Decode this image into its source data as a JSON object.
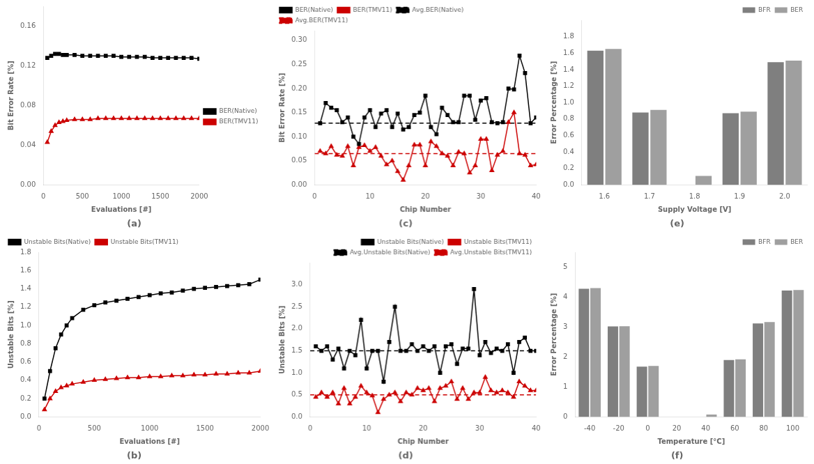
{
  "chart_data": [
    {
      "type": "line",
      "title": "(a)",
      "xlabel": "Evaluations [#]",
      "ylabel": "Bit Error Rate [%]",
      "xlim": [
        0,
        2000
      ],
      "ylim": [
        0,
        0.18
      ],
      "xticks": [
        0,
        500,
        1000,
        1500,
        2000
      ],
      "yticks": [
        {
          "value": 0,
          "label": "0.00"
        },
        0.04,
        0.08,
        0.12,
        0.16
      ],
      "grid": false,
      "legend": "center right",
      "x": [
        50,
        100,
        150,
        200,
        250,
        300,
        400,
        500,
        600,
        700,
        800,
        900,
        1000,
        1100,
        1200,
        1300,
        1400,
        1500,
        1600,
        1700,
        1800,
        1900,
        2000
      ],
      "series": [
        {
          "name": "BER(Native)",
          "color": "#000000",
          "marker": "square",
          "line_style": "solid",
          "values": [
            0.128,
            0.13,
            0.132,
            0.132,
            0.131,
            0.131,
            0.131,
            0.13,
            0.13,
            0.13,
            0.13,
            0.13,
            0.129,
            0.129,
            0.129,
            0.129,
            0.128,
            0.128,
            0.128,
            0.128,
            0.128,
            0.128,
            0.127
          ]
        },
        {
          "name": "BER(TMV11)",
          "color": "#cc0000",
          "marker": "triangle",
          "line_style": "solid",
          "values": [
            0.043,
            0.054,
            0.06,
            0.063,
            0.064,
            0.065,
            0.066,
            0.066,
            0.066,
            0.067,
            0.067,
            0.067,
            0.067,
            0.067,
            0.067,
            0.067,
            0.067,
            0.067,
            0.067,
            0.067,
            0.067,
            0.067,
            0.067
          ]
        }
      ]
    },
    {
      "type": "line",
      "title": "(c)",
      "xlabel": "Chip Number",
      "ylabel": "Bit Error Rate [%]",
      "xlim": [
        0,
        40
      ],
      "ylim": [
        0,
        0.32
      ],
      "xticks": [
        0,
        10,
        20,
        30,
        40
      ],
      "yticks": [
        {
          "value": 0,
          "label": "0.00"
        },
        0.05,
        {
          "value": 0.1,
          "label": "0.10"
        },
        0.15,
        {
          "value": 0.2,
          "label": "0.20"
        },
        0.25,
        {
          "value": 0.3,
          "label": "0.30"
        }
      ],
      "grid": false,
      "legend": "upper left",
      "x": [
        1,
        2,
        3,
        4,
        5,
        6,
        7,
        8,
        9,
        10,
        11,
        12,
        13,
        14,
        15,
        16,
        17,
        18,
        19,
        20,
        21,
        22,
        23,
        24,
        25,
        26,
        27,
        28,
        29,
        30,
        31,
        32,
        33,
        34,
        35,
        36,
        37,
        38,
        39,
        40
      ],
      "series": [
        {
          "name": "BER(Native)",
          "color": "#000000",
          "marker": "square",
          "line_style": "solid",
          "values": [
            0.128,
            0.17,
            0.16,
            0.155,
            0.13,
            0.14,
            0.1,
            0.085,
            0.14,
            0.155,
            0.12,
            0.148,
            0.155,
            0.12,
            0.148,
            0.115,
            0.12,
            0.145,
            0.15,
            0.185,
            0.12,
            0.105,
            0.16,
            0.145,
            0.13,
            0.13,
            0.185,
            0.185,
            0.135,
            0.175,
            0.18,
            0.13,
            0.128,
            0.13,
            0.2,
            0.198,
            0.268,
            0.232,
            0.128,
            0.14
          ]
        },
        {
          "name": "BER(TMV11)",
          "color": "#cc0000",
          "marker": "triangle",
          "line_style": "solid",
          "values": [
            0.07,
            0.065,
            0.08,
            0.062,
            0.06,
            0.08,
            0.04,
            0.078,
            0.082,
            0.07,
            0.078,
            0.06,
            0.042,
            0.05,
            0.028,
            0.01,
            0.04,
            0.083,
            0.083,
            0.04,
            0.09,
            0.08,
            0.065,
            0.06,
            0.04,
            0.068,
            0.065,
            0.025,
            0.04,
            0.095,
            0.095,
            0.03,
            0.062,
            0.07,
            0.13,
            0.15,
            0.065,
            0.062,
            0.04,
            0.042
          ]
        }
      ],
      "reference_lines": [
        {
          "name": "Avg.BER(Native)",
          "color": "#000000",
          "line_style": "dashed",
          "value": 0.128
        },
        {
          "name": "Avg.BER(TMV11)",
          "color": "#cc0000",
          "line_style": "dashed",
          "value": 0.065
        }
      ]
    },
    {
      "type": "bar",
      "title": "(e)",
      "xlabel": "Supply Voltage [V]",
      "ylabel": "Error Percentage [%]",
      "categories": [
        "1.6",
        "1.7",
        "1.8",
        "1.9",
        "2.0"
      ],
      "ylim": [
        0,
        2.0
      ],
      "yticks": [
        {
          "value": 0,
          "label": "0.0"
        },
        0.2,
        0.4,
        0.6,
        0.8,
        {
          "value": 1,
          "label": "1.0"
        },
        1.2,
        1.4,
        1.6,
        1.8
      ],
      "grid": false,
      "legend": "upper right",
      "series": [
        {
          "name": "BFR",
          "color": "#7f7f7f",
          "values": [
            1.63,
            0.88,
            0.0,
            0.87,
            1.49
          ]
        },
        {
          "name": "BER",
          "color": "#9f9f9f",
          "values": [
            1.65,
            0.91,
            0.11,
            0.89,
            1.51
          ]
        }
      ]
    },
    {
      "type": "line",
      "title": "(b)",
      "xlabel": "Evaluations [#]",
      "ylabel": "Unstable Bits [%]",
      "xlim": [
        0,
        2000
      ],
      "ylim": [
        0,
        1.8
      ],
      "xticks": [
        0,
        500,
        1000,
        1500,
        2000
      ],
      "yticks": [
        {
          "value": 0,
          "label": "0.0"
        },
        0.2,
        0.4,
        0.6,
        0.8,
        {
          "value": 1,
          "label": "1.0"
        },
        1.2,
        1.4,
        1.6,
        1.8
      ],
      "grid": false,
      "legend": "upper left",
      "x": [
        50,
        100,
        150,
        200,
        250,
        300,
        400,
        500,
        600,
        700,
        800,
        900,
        1000,
        1100,
        1200,
        1300,
        1400,
        1500,
        1600,
        1700,
        1800,
        1900,
        2000
      ],
      "series": [
        {
          "name": "Unstable Bits(Native)",
          "color": "#000000",
          "marker": "square",
          "line_style": "solid",
          "values": [
            0.2,
            0.5,
            0.75,
            0.9,
            1.0,
            1.08,
            1.17,
            1.22,
            1.25,
            1.27,
            1.29,
            1.31,
            1.33,
            1.35,
            1.36,
            1.38,
            1.4,
            1.41,
            1.42,
            1.43,
            1.44,
            1.45,
            1.5
          ]
        },
        {
          "name": "Unstable Bits(TMV11)",
          "color": "#cc0000",
          "marker": "triangle",
          "line_style": "solid",
          "values": [
            0.08,
            0.2,
            0.28,
            0.32,
            0.34,
            0.36,
            0.38,
            0.4,
            0.41,
            0.42,
            0.43,
            0.43,
            0.44,
            0.44,
            0.45,
            0.45,
            0.46,
            0.46,
            0.47,
            0.47,
            0.48,
            0.48,
            0.5
          ]
        }
      ]
    },
    {
      "type": "line",
      "title": "(d)",
      "xlabel": "Chip Number",
      "ylabel": "Unstable Bits [%]",
      "xlim": [
        0,
        40
      ],
      "ylim": [
        0,
        3.5
      ],
      "xticks": [
        0,
        10,
        20,
        30,
        40
      ],
      "yticks": [
        {
          "value": 0,
          "label": "0.0"
        },
        0.5,
        {
          "value": 1,
          "label": "1.0"
        },
        1.5,
        {
          "value": 2,
          "label": "2.0"
        },
        2.5,
        {
          "value": 3,
          "label": "3.0"
        }
      ],
      "grid": false,
      "legend": "upper right",
      "x": [
        1,
        2,
        3,
        4,
        5,
        6,
        7,
        8,
        9,
        10,
        11,
        12,
        13,
        14,
        15,
        16,
        17,
        18,
        19,
        20,
        21,
        22,
        23,
        24,
        25,
        26,
        27,
        28,
        29,
        30,
        31,
        32,
        33,
        34,
        35,
        36,
        37,
        38,
        39,
        40
      ],
      "series": [
        {
          "name": "Unstable Bits(Native)",
          "color": "#000000",
          "marker": "square",
          "line_style": "solid",
          "values": [
            1.6,
            1.5,
            1.6,
            1.3,
            1.55,
            1.1,
            1.5,
            1.4,
            2.2,
            1.1,
            1.5,
            1.5,
            0.8,
            1.7,
            2.5,
            1.5,
            1.5,
            1.65,
            1.5,
            1.6,
            1.5,
            1.6,
            1.0,
            1.6,
            1.65,
            1.2,
            1.55,
            1.55,
            2.9,
            1.4,
            1.7,
            1.45,
            1.55,
            1.5,
            1.65,
            1.0,
            1.7,
            1.8,
            1.5,
            1.5
          ]
        },
        {
          "name": "Unstable Bits(TMV11)",
          "color": "#cc0000",
          "marker": "triangle",
          "line_style": "solid",
          "values": [
            0.45,
            0.55,
            0.45,
            0.55,
            0.3,
            0.65,
            0.3,
            0.45,
            0.7,
            0.55,
            0.48,
            0.1,
            0.4,
            0.5,
            0.55,
            0.35,
            0.55,
            0.5,
            0.65,
            0.6,
            0.65,
            0.35,
            0.65,
            0.7,
            0.8,
            0.4,
            0.65,
            0.4,
            0.55,
            0.55,
            0.9,
            0.6,
            0.55,
            0.6,
            0.55,
            0.45,
            0.8,
            0.7,
            0.6,
            0.6
          ]
        }
      ],
      "reference_lines": [
        {
          "name": "Avg.Unstable Bits(Native)",
          "color": "#000000",
          "line_style": "dashed",
          "value": 1.5
        },
        {
          "name": "Avg.Unstable Bits(TMV11)",
          "color": "#cc0000",
          "line_style": "dashed",
          "value": 0.5
        }
      ]
    },
    {
      "type": "bar",
      "title": "(f)",
      "xlabel": "Temperature [°C]",
      "ylabel": "Error Percentage [%]",
      "categories": [
        "-40",
        "-20",
        "0",
        "20",
        "40",
        "60",
        "80",
        "100"
      ],
      "ylim": [
        0,
        5.5
      ],
      "yticks": [
        0,
        1,
        2,
        3,
        4,
        5
      ],
      "grid": false,
      "legend": "upper right",
      "series": [
        {
          "name": "BFR",
          "color": "#7f7f7f",
          "values": [
            4.28,
            3.02,
            1.68,
            0.0,
            0.0,
            1.9,
            3.12,
            4.22
          ]
        },
        {
          "name": "BER",
          "color": "#9f9f9f",
          "values": [
            4.3,
            3.03,
            1.7,
            0.0,
            0.08,
            1.92,
            3.17,
            4.24
          ]
        }
      ]
    }
  ]
}
